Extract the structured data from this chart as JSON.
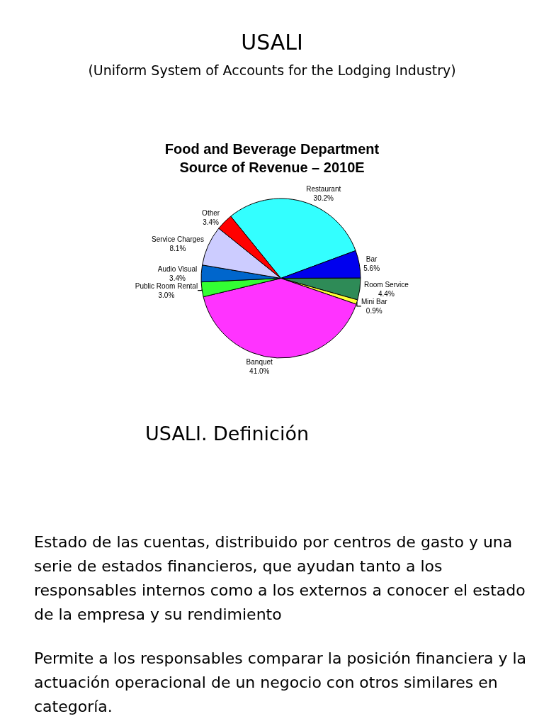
{
  "chart_data": {
    "type": "pie",
    "title": "Food and Beverage Department\nSource of Revenue – 2010E",
    "categories": [
      "Restaurant",
      "Bar",
      "Room Service",
      "Mini Bar",
      "Banquet",
      "Public Room Rental",
      "Audio Visual",
      "Service Charges",
      "Other"
    ],
    "values": [
      30.2,
      5.6,
      4.4,
      0.9,
      41.0,
      3.0,
      3.4,
      8.1,
      3.4
    ],
    "value_labels": [
      "30.2%",
      "5.6%",
      "4.4%",
      "0.9%",
      "41.0%",
      "3.0%",
      "3.4%",
      "8.1%",
      "3.4%"
    ],
    "colors": [
      "#33ffff",
      "#0000ee",
      "#2e8b57",
      "#ffff33",
      "#ff33ff",
      "#33ff33",
      "#0066cc",
      "#ccccff",
      "#ff0000"
    ],
    "legend": false,
    "annotations": [
      "USALI",
      "(Uniform System of Accounts for the Lodging Industry)",
      "USALI. Definición",
      "Estado de las cuentas, distribuido por centros de gasto y una serie de estados financieros, que ayudan tanto a los responsables internos como a los externos a conocer el estado de la empresa y su rendimiento",
      "Permite a los responsables comparar la posición financiera y la actuación operacional de un negocio con otros similares en categoría."
    ]
  }
}
